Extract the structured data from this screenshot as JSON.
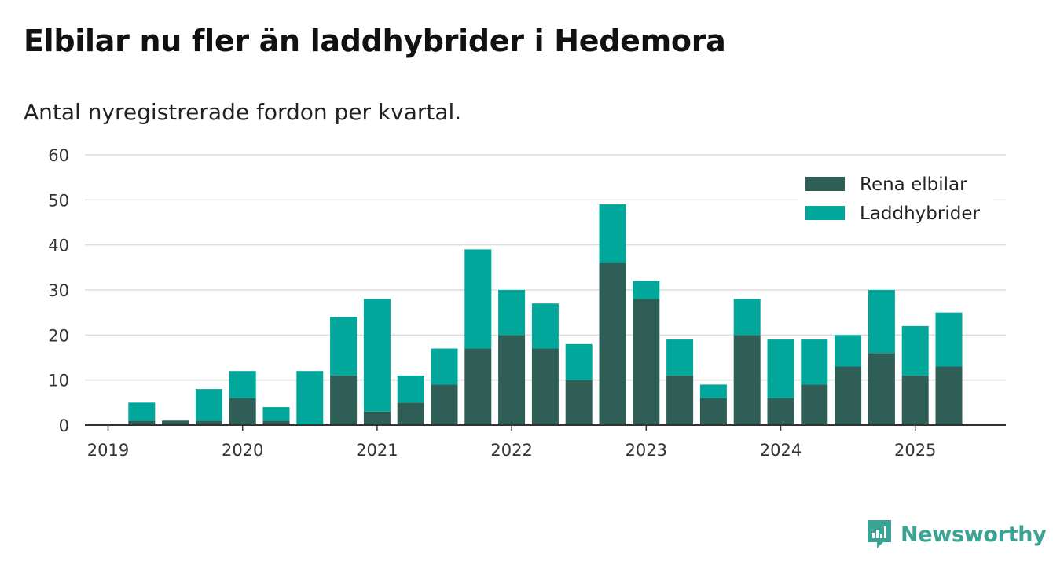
{
  "title": "Elbilar nu fler än laddhybrider i Hedemora",
  "subtitle": "Antal nyregistrerade fordon per kvartal.",
  "brand": {
    "name": "Newsworthy",
    "icon": "newsworthy-logo-icon",
    "color": "#3aa394"
  },
  "chart_data": {
    "type": "bar",
    "stacked": true,
    "categories": [
      "2019 Q1",
      "2019 Q2",
      "2019 Q3",
      "2019 Q4",
      "2020 Q1",
      "2020 Q2",
      "2020 Q3",
      "2020 Q4",
      "2021 Q1",
      "2021 Q2",
      "2021 Q3",
      "2021 Q4",
      "2022 Q1",
      "2022 Q2",
      "2022 Q3",
      "2022 Q4",
      "2023 Q1",
      "2023 Q2",
      "2023 Q3",
      "2023 Q4",
      "2024 Q1",
      "2024 Q2",
      "2024 Q3",
      "2024 Q4",
      "2025 Q1",
      "2025 Q2"
    ],
    "series": [
      {
        "name": "Rena elbilar",
        "color": "#2f5e57",
        "values": [
          0,
          1,
          1,
          1,
          6,
          1,
          0,
          11,
          3,
          5,
          9,
          17,
          20,
          17,
          10,
          36,
          28,
          11,
          6,
          20,
          6,
          9,
          13,
          16,
          11,
          13
        ]
      },
      {
        "name": "Laddhybrider",
        "color": "#00a79a",
        "values": [
          0,
          4,
          0,
          7,
          6,
          3,
          12,
          13,
          25,
          6,
          8,
          22,
          10,
          10,
          8,
          13,
          4,
          8,
          3,
          8,
          13,
          10,
          7,
          14,
          11,
          12
        ]
      }
    ],
    "x_tick_labels": [
      "2019",
      "2020",
      "2021",
      "2022",
      "2023",
      "2024",
      "2025"
    ],
    "y_tick_labels": [
      "0",
      "10",
      "20",
      "30",
      "40",
      "50",
      "60"
    ],
    "ylim": [
      0,
      60
    ],
    "grid": true,
    "legend_position": "top-right"
  }
}
